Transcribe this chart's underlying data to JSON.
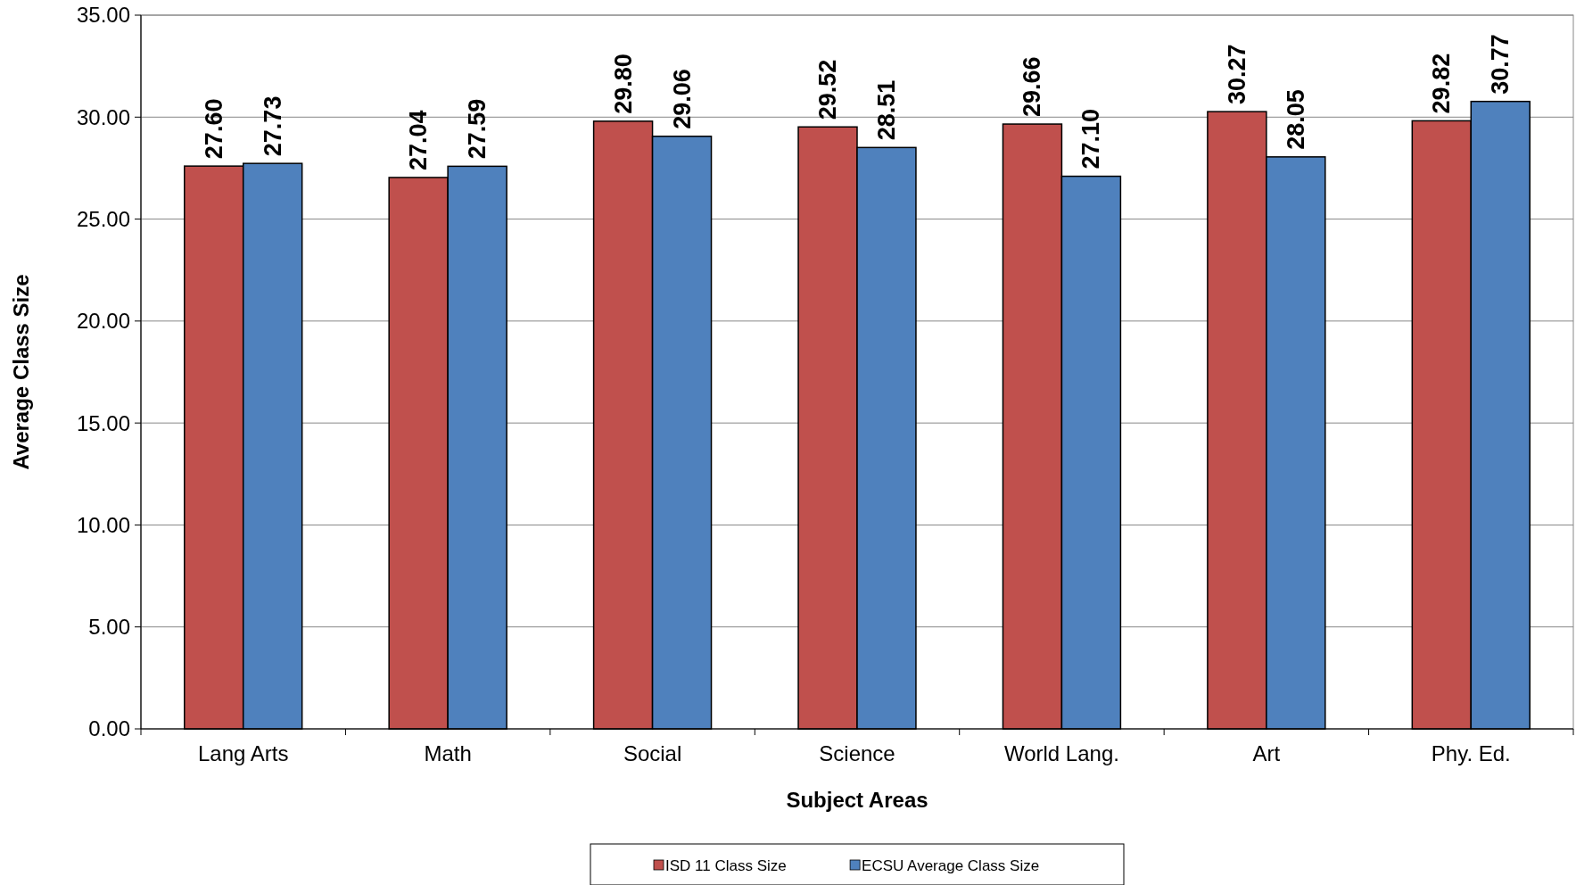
{
  "chart_data": {
    "type": "bar",
    "xlabel": "Subject Areas",
    "ylabel": "Average Class Size",
    "categories": [
      "Lang Arts",
      "Math",
      "Social",
      "Science",
      "World Lang.",
      "Art",
      "Phy. Ed."
    ],
    "series": [
      {
        "name": "ISD 11 Class Size",
        "color": "#c0504d",
        "values": [
          27.6,
          27.04,
          29.8,
          29.52,
          29.66,
          30.27,
          29.82
        ],
        "value_labels": [
          "27.60",
          "27.04",
          "29.80",
          "29.52",
          "29.66",
          "30.27",
          "29.82"
        ]
      },
      {
        "name": "ECSU Average Class Size",
        "color": "#4f81bd",
        "values": [
          27.73,
          27.59,
          29.06,
          28.51,
          27.1,
          28.05,
          30.77
        ],
        "value_labels": [
          "27.73",
          "27.59",
          "29.06",
          "28.51",
          "27.10",
          "28.05",
          "30.77"
        ]
      }
    ],
    "ylim": [
      0,
      35
    ],
    "yticks": [
      {
        "value": 0,
        "label": "0.00"
      },
      {
        "value": 5,
        "label": "5.00"
      },
      {
        "value": 10,
        "label": "10.00"
      },
      {
        "value": 15,
        "label": "15.00"
      },
      {
        "value": 20,
        "label": "20.00"
      },
      {
        "value": 25,
        "label": "25.00"
      },
      {
        "value": 30,
        "label": "30.00"
      },
      {
        "value": 35,
        "label": "35.00"
      }
    ],
    "grid": "y",
    "legend": "bottom"
  }
}
